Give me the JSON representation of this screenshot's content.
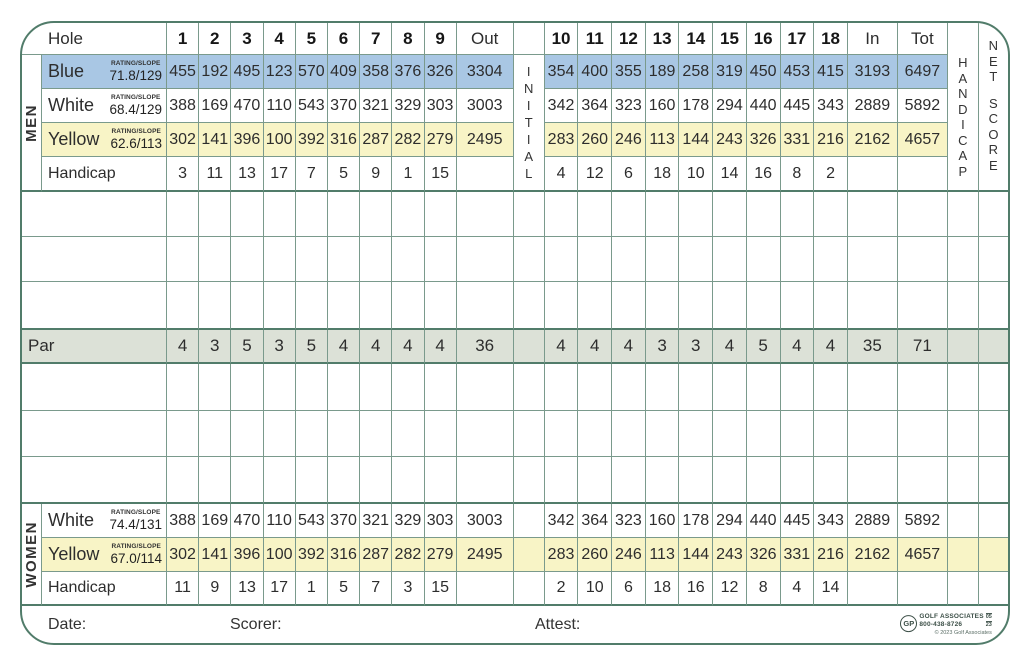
{
  "colors": {
    "blue": "#a9c7e4",
    "yellow": "#f8f4c6",
    "par": "#dce1d7",
    "line": "#7a9a8c",
    "border": "#517c6a"
  },
  "header": {
    "hole_label": "Hole",
    "front_holes": [
      "1",
      "2",
      "3",
      "4",
      "5",
      "6",
      "7",
      "8",
      "9"
    ],
    "out_label": "Out",
    "back_holes": [
      "10",
      "11",
      "12",
      "13",
      "14",
      "15",
      "16",
      "17",
      "18"
    ],
    "in_label": "In",
    "tot_label": "Tot"
  },
  "strips": {
    "men": "MEN",
    "women": "WOMEN",
    "initial": "INITIAL",
    "handicap": "HANDICAP",
    "net_score": "NET SCORE"
  },
  "men": {
    "tees": [
      {
        "name": "Blue",
        "color": "blue",
        "rating_label": "RATING/SLOPE",
        "rating": "71.8/129",
        "front": [
          455,
          192,
          495,
          123,
          570,
          409,
          358,
          376,
          326
        ],
        "out": 3304,
        "back": [
          354,
          400,
          355,
          189,
          258,
          319,
          450,
          453,
          415
        ],
        "in": 3193,
        "tot": 6497
      },
      {
        "name": "White",
        "color": "white",
        "rating_label": "RATING/SLOPE",
        "rating": "68.4/129",
        "front": [
          388,
          169,
          470,
          110,
          543,
          370,
          321,
          329,
          303
        ],
        "out": 3003,
        "back": [
          342,
          364,
          323,
          160,
          178,
          294,
          440,
          445,
          343
        ],
        "in": 2889,
        "tot": 5892
      },
      {
        "name": "Yellow",
        "color": "yellow",
        "rating_label": "RATING/SLOPE",
        "rating": "62.6/113",
        "front": [
          302,
          141,
          396,
          100,
          392,
          316,
          287,
          282,
          279
        ],
        "out": 2495,
        "back": [
          283,
          260,
          246,
          113,
          144,
          243,
          326,
          331,
          216
        ],
        "in": 2162,
        "tot": 4657
      }
    ],
    "handicap": {
      "label": "Handicap",
      "front": [
        3,
        11,
        13,
        17,
        7,
        5,
        9,
        1,
        15
      ],
      "back": [
        4,
        12,
        6,
        18,
        10,
        14,
        16,
        8,
        2
      ]
    }
  },
  "par": {
    "label": "Par",
    "front": [
      4,
      3,
      5,
      3,
      5,
      4,
      4,
      4,
      4
    ],
    "out": 36,
    "back": [
      4,
      4,
      4,
      3,
      3,
      4,
      5,
      4,
      4
    ],
    "in": 35,
    "tot": 71
  },
  "women": {
    "tees": [
      {
        "name": "White",
        "color": "white",
        "rating_label": "RATING/SLOPE",
        "rating": "74.4/131",
        "front": [
          388,
          169,
          470,
          110,
          543,
          370,
          321,
          329,
          303
        ],
        "out": 3003,
        "back": [
          342,
          364,
          323,
          160,
          178,
          294,
          440,
          445,
          343
        ],
        "in": 2889,
        "tot": 5892
      },
      {
        "name": "Yellow",
        "color": "yellow",
        "rating_label": "RATING/SLOPE",
        "rating": "67.0/114",
        "front": [
          302,
          141,
          396,
          100,
          392,
          316,
          287,
          282,
          279
        ],
        "out": 2495,
        "back": [
          283,
          260,
          246,
          113,
          144,
          243,
          326,
          331,
          216
        ],
        "in": 2162,
        "tot": 4657
      }
    ],
    "handicap": {
      "label": "Handicap",
      "front": [
        11,
        9,
        13,
        17,
        1,
        5,
        7,
        3,
        15
      ],
      "back": [
        2,
        10,
        6,
        18,
        16,
        12,
        8,
        4,
        14
      ]
    }
  },
  "footer": {
    "date_label": "Date:",
    "scorer_label": "Scorer:",
    "attest_label": "Attest:",
    "logo": {
      "monogram": "GP",
      "name": "GOLF ASSOCIATES",
      "phone": "800-438-8726",
      "code_top": "05",
      "code_bottom": "23",
      "copyright": "© 2023 Golf Associates"
    }
  }
}
